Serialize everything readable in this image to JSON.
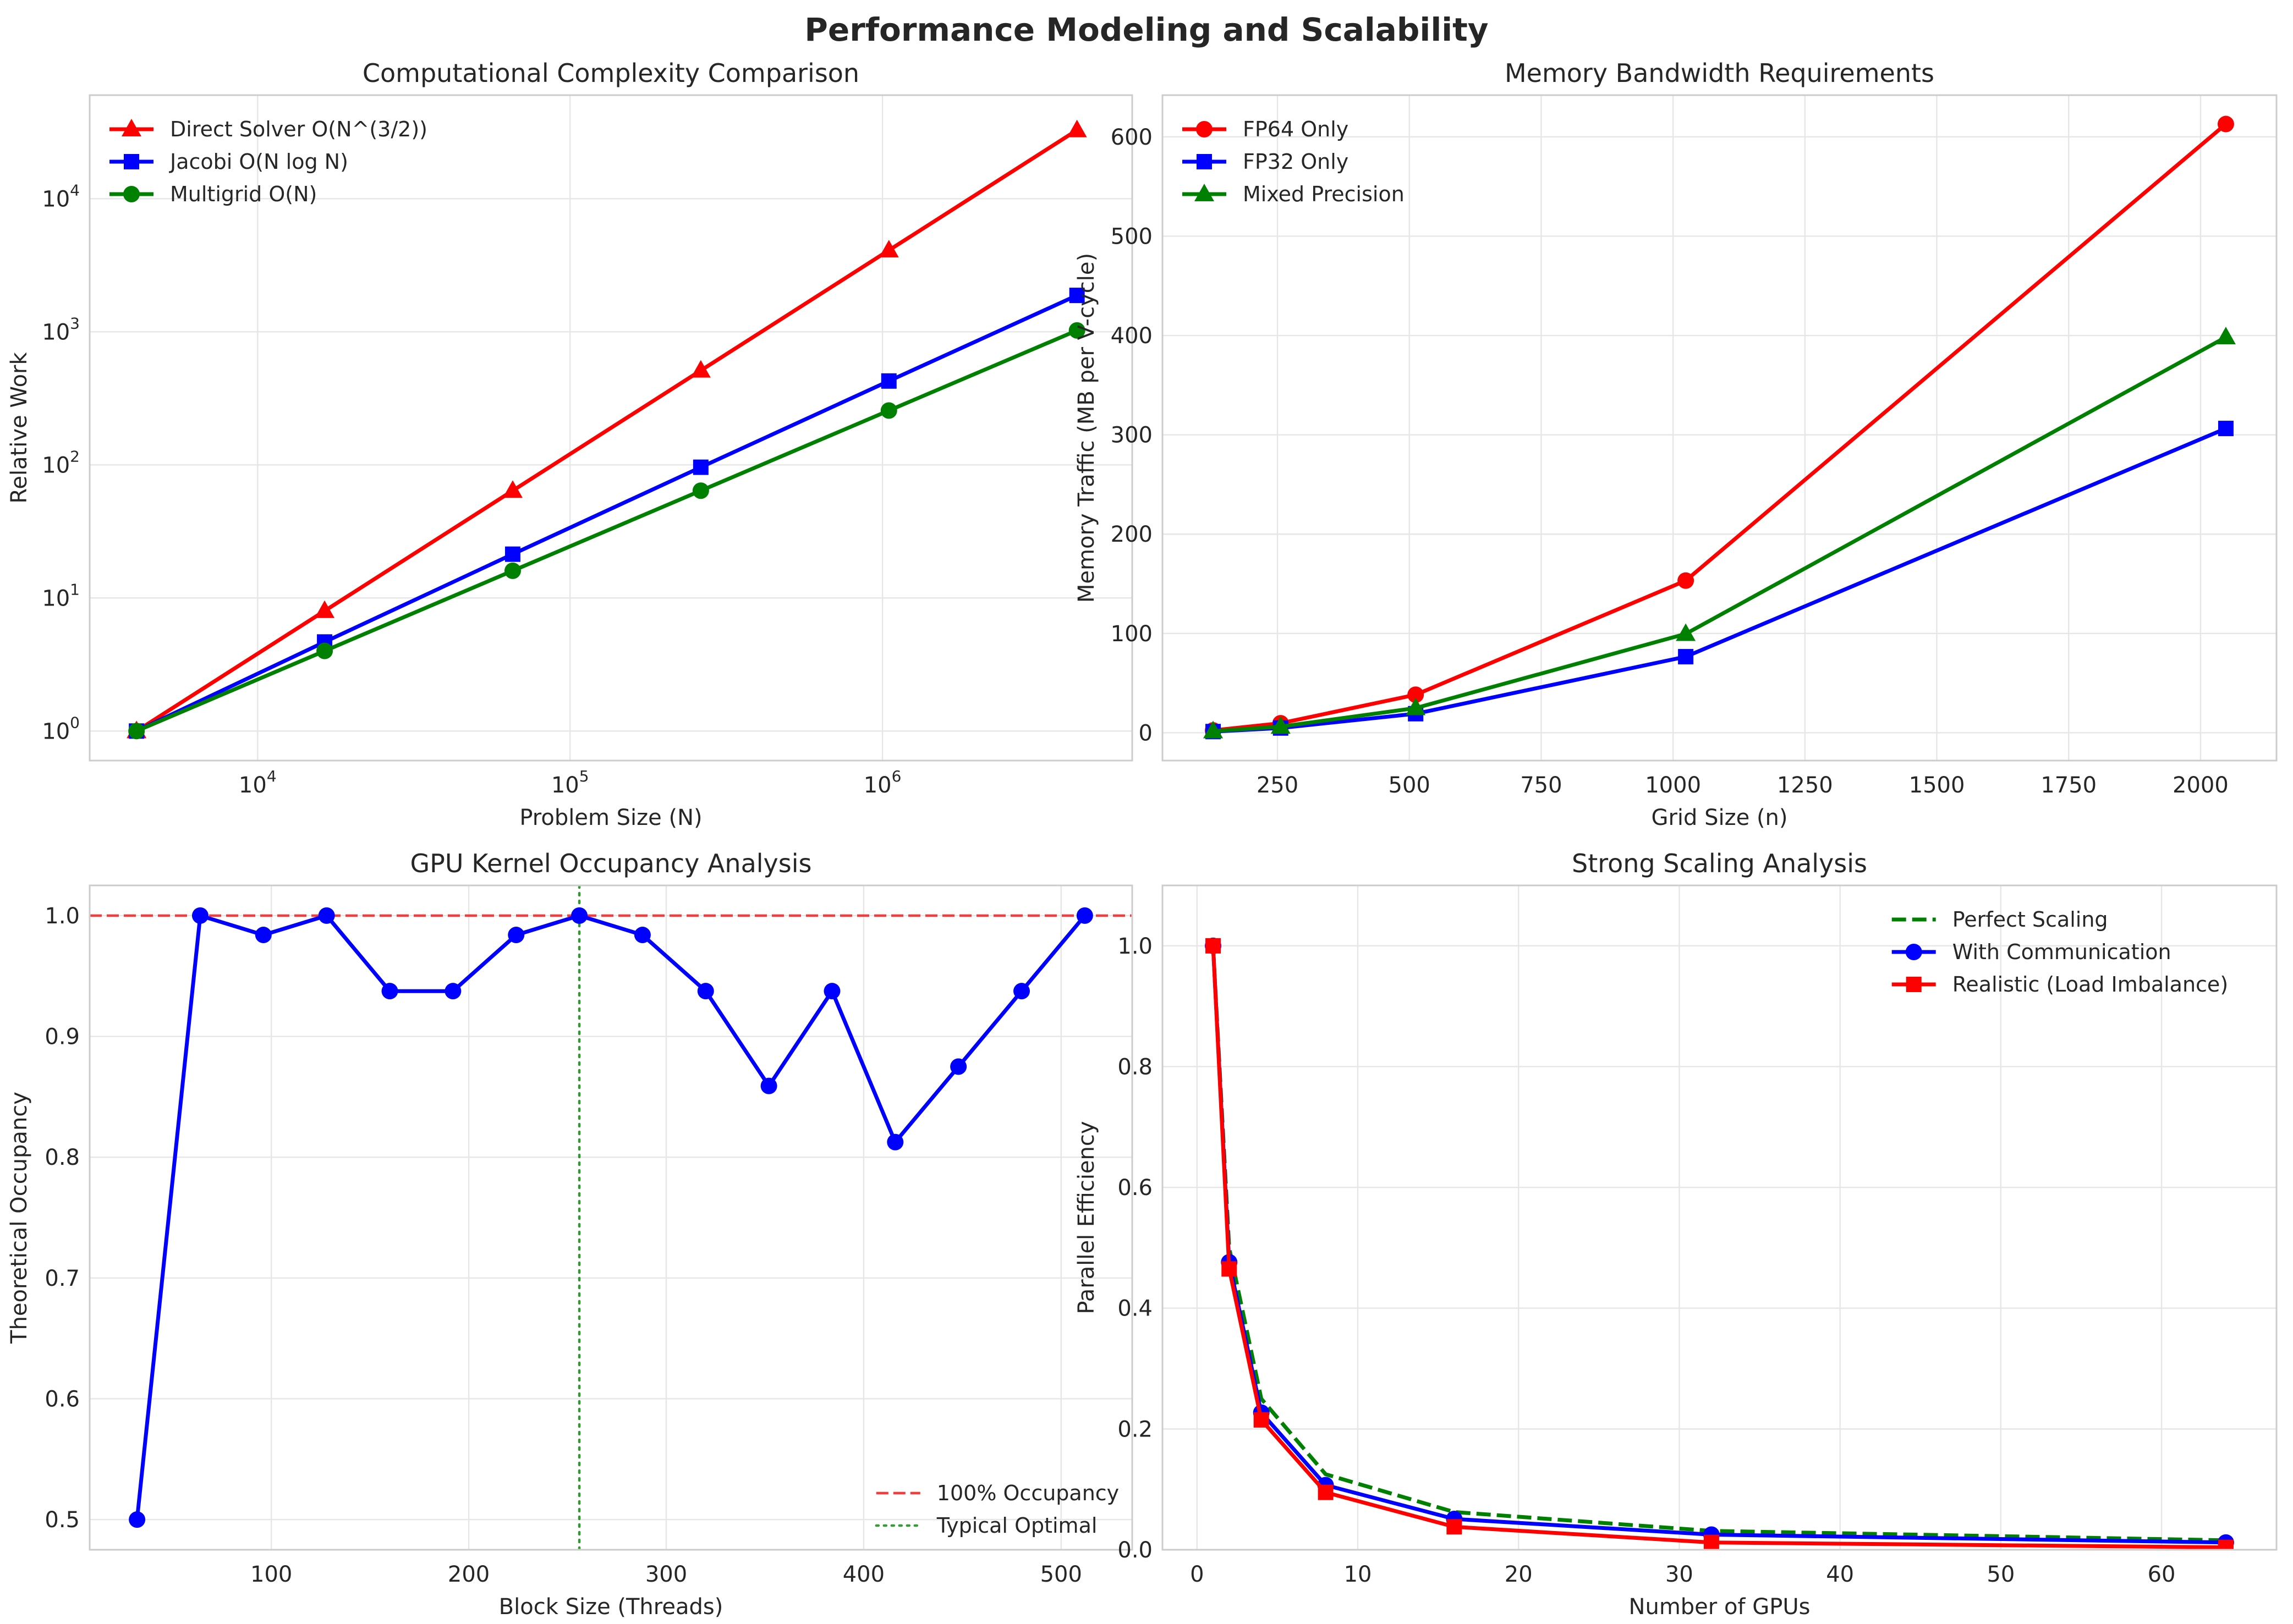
{
  "figure": {
    "title": "Performance Modeling and Scalability"
  },
  "chart_data": [
    {
      "type": "line",
      "title": "Computational Complexity Comparison",
      "xlabel": "Problem Size (N)",
      "ylabel": "Relative Work",
      "xscale": "log",
      "yscale": "log",
      "xlim": [
        2900,
        6300000
      ],
      "ylim": [
        0.6,
        60000
      ],
      "xticks": [
        {
          "value": 10000,
          "label": "10",
          "exp": "4"
        },
        {
          "value": 100000,
          "label": "10",
          "exp": "5"
        },
        {
          "value": 1000000,
          "label": "10",
          "exp": "6"
        }
      ],
      "yticks": [
        {
          "value": 1,
          "label": "10",
          "exp": "0"
        },
        {
          "value": 10,
          "label": "10",
          "exp": "1"
        },
        {
          "value": 100,
          "label": "10",
          "exp": "2"
        },
        {
          "value": 1000,
          "label": "10",
          "exp": "3"
        },
        {
          "value": 10000,
          "label": "10",
          "exp": "4"
        }
      ],
      "grid": true,
      "legend": "upper-left",
      "series": [
        {
          "name": "Direct Solver O(N^(3/2))",
          "color": "#ff0000",
          "marker": "triangle",
          "x": [
            4096,
            16384,
            65536,
            262144,
            1048576,
            4194304
          ],
          "y": [
            1,
            8,
            64,
            512,
            4096,
            32768
          ]
        },
        {
          "name": "Jacobi O(N log N)",
          "color": "#0000ff",
          "marker": "square",
          "x": [
            4096,
            16384,
            65536,
            262144,
            1048576,
            4194304
          ],
          "y": [
            1,
            4.67,
            21.33,
            96,
            426.67,
            1877.33
          ]
        },
        {
          "name": "Multigrid O(N)",
          "color": "#008000",
          "marker": "circle",
          "x": [
            4096,
            16384,
            65536,
            262144,
            1048576,
            4194304
          ],
          "y": [
            1,
            4,
            16,
            64,
            256,
            1024
          ]
        }
      ]
    },
    {
      "type": "line",
      "title": "Memory Bandwidth Requirements",
      "xlabel": "Grid Size (n)",
      "ylabel": "Memory Traffic (MB per V-cycle)",
      "xlim": [
        32,
        2144
      ],
      "ylim": [
        -28,
        642
      ],
      "xticks": [
        250,
        500,
        750,
        1000,
        1250,
        1500,
        1750,
        2000
      ],
      "yticks": [
        0,
        100,
        200,
        300,
        400,
        500,
        600
      ],
      "grid": true,
      "legend": "upper-left",
      "series": [
        {
          "name": "FP64 Only",
          "color": "#ff0000",
          "marker": "circle",
          "x": [
            128,
            256,
            512,
            1024,
            2048
          ],
          "y": [
            2.4,
            9.6,
            38.3,
            153.2,
            612.9
          ]
        },
        {
          "name": "FP32 Only",
          "color": "#0000ff",
          "marker": "square",
          "x": [
            128,
            256,
            512,
            1024,
            2048
          ],
          "y": [
            1.2,
            4.8,
            19.2,
            76.6,
            306.4
          ]
        },
        {
          "name": "Mixed Precision",
          "color": "#008000",
          "marker": "triangle",
          "x": [
            128,
            256,
            512,
            1024,
            2048
          ],
          "y": [
            1.6,
            6.2,
            24.9,
            99.6,
            398.3
          ]
        }
      ]
    },
    {
      "type": "line",
      "title": "GPU Kernel Occupancy Analysis",
      "xlabel": "Block Size (Threads)",
      "ylabel": "Theoretical Occupancy",
      "xlim": [
        8,
        536
      ],
      "ylim": [
        0.475,
        1.025
      ],
      "xticks": [
        100,
        200,
        300,
        400,
        500
      ],
      "yticks": [
        0.5,
        0.6,
        0.7,
        0.8,
        0.9,
        1.0
      ],
      "ytick_labels": [
        "0.5",
        "0.6",
        "0.7",
        "0.8",
        "0.9",
        "1.0"
      ],
      "grid": true,
      "legend": "lower-right",
      "series": [
        {
          "name": "",
          "color": "#0000ff",
          "marker": "circle",
          "x": [
            32,
            64,
            96,
            128,
            160,
            192,
            224,
            256,
            288,
            320,
            352,
            384,
            416,
            448,
            480,
            512
          ],
          "y": [
            0.5,
            1.0,
            0.984,
            1.0,
            0.9375,
            0.9375,
            0.984,
            1.0,
            0.984,
            0.9375,
            0.859,
            0.9375,
            0.8125,
            0.875,
            0.9375,
            1.0
          ]
        }
      ],
      "reference_lines": [
        {
          "name": "100% Occupancy",
          "orientation": "horizontal",
          "value": 1.0,
          "color": "#ff0000",
          "style": "dashed"
        },
        {
          "name": "Typical Optimal",
          "orientation": "vertical",
          "value": 256,
          "color": "#008000",
          "style": "dotted"
        }
      ]
    },
    {
      "type": "line",
      "title": "Strong Scaling Analysis",
      "xlabel": "Number of GPUs",
      "ylabel": "Parallel Efficiency",
      "xlim": [
        -2.15,
        67.15
      ],
      "ylim": [
        0,
        1.1
      ],
      "xticks": [
        0,
        10,
        20,
        30,
        40,
        50,
        60
      ],
      "yticks": [
        0,
        0.2,
        0.4,
        0.6,
        0.8,
        1.0
      ],
      "ytick_labels": [
        "0.0",
        "0.2",
        "0.4",
        "0.6",
        "0.8",
        "1.0"
      ],
      "grid": true,
      "legend": "upper-right",
      "series": [
        {
          "name": "Perfect Scaling",
          "color": "#008000",
          "marker": "none",
          "style": "dashed",
          "x": [
            1,
            2,
            4,
            8,
            16,
            32,
            64
          ],
          "y": [
            1.0,
            0.5,
            0.25,
            0.125,
            0.0625,
            0.03125,
            0.015625
          ]
        },
        {
          "name": "With Communication",
          "color": "#0000ff",
          "marker": "circle",
          "x": [
            1,
            2,
            4,
            8,
            16,
            32,
            64
          ],
          "y": [
            1.0,
            0.476,
            0.227,
            0.107,
            0.051,
            0.025,
            0.012
          ]
        },
        {
          "name": "Realistic (Load Imbalance)",
          "color": "#ff0000",
          "marker": "square",
          "x": [
            1,
            2,
            4,
            8,
            16,
            32,
            64
          ],
          "y": [
            1.0,
            0.465,
            0.215,
            0.095,
            0.038,
            0.012,
            0.004
          ]
        }
      ]
    }
  ]
}
